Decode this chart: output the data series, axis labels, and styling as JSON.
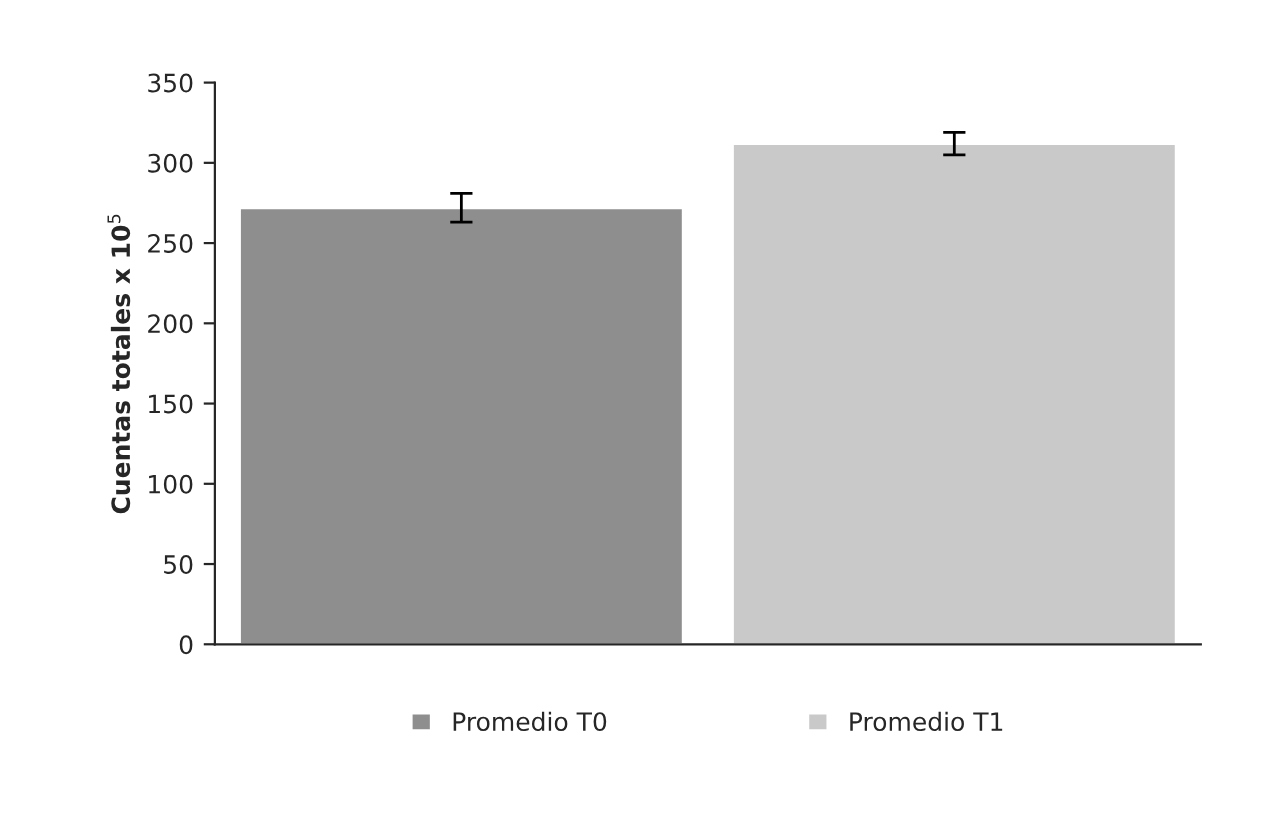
{
  "chart_data": {
    "type": "bar",
    "ylabel": "Cuentas totales x 10$^{5}$",
    "categories": [
      null,
      null
    ],
    "series": [
      {
        "name": "Promedio T0",
        "color": "#8e8e8e",
        "values": [
          272,
          null
        ],
        "errors": [
          9,
          null
        ]
      },
      {
        "name": "Promedio T1",
        "color": "#c9c9c9",
        "values": [
          null,
          312
        ],
        "errors": [
          null,
          7
        ]
      }
    ],
    "ylim": [
      0,
      350
    ],
    "yticks": [
      0,
      50,
      100,
      150,
      200,
      250,
      300,
      350
    ],
    "grid": false,
    "legend": "bottom"
  }
}
